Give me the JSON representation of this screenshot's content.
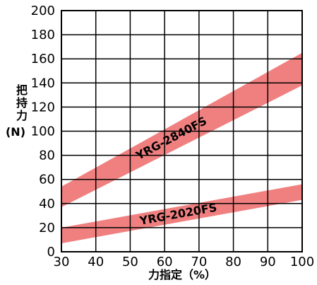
{
  "chart_data": {
    "type": "area",
    "xlabel": "力指定（%）",
    "ylabel_chars": [
      "把",
      "持",
      "力"
    ],
    "ylabel_unit": "(N)",
    "xlim": [
      30,
      100
    ],
    "ylim": [
      0,
      200
    ],
    "x_ticks": [
      30,
      40,
      50,
      60,
      70,
      80,
      90,
      100
    ],
    "y_ticks": [
      0,
      20,
      40,
      60,
      80,
      100,
      120,
      140,
      160,
      180,
      200
    ],
    "grid": true,
    "band_color": "#f08080",
    "series": [
      {
        "name": "YRG-2840FS",
        "x": [
          30,
          100
        ],
        "lower": [
          37,
          138
        ],
        "upper": [
          54,
          165
        ]
      },
      {
        "name": "YRG-2020FS",
        "x": [
          30,
          100
        ],
        "lower": [
          7,
          43
        ],
        "upper": [
          20,
          56
        ]
      }
    ]
  }
}
